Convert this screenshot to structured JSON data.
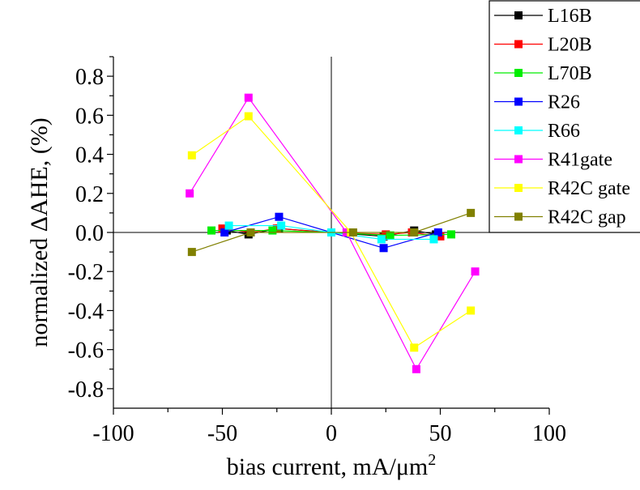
{
  "chart_data": {
    "type": "line",
    "xlabel": "bias current, mA/μm",
    "xlabel_superscript": "2",
    "ylabel": "normalized ΔAHE, (%)",
    "xlim": [
      -100,
      100
    ],
    "ylim": [
      -0.9,
      0.9
    ],
    "x_ticks": [
      -100,
      -50,
      0,
      50,
      100
    ],
    "x_tick_labels": [
      "-100",
      "-50",
      "0",
      "50",
      "100"
    ],
    "y_ticks": [
      -0.8,
      -0.6,
      -0.4,
      -0.2,
      0.0,
      0.2,
      0.4,
      0.6,
      0.8
    ],
    "y_tick_labels": [
      "-0.8",
      "-0.6",
      "-0.4",
      "-0.2",
      "0.0",
      "0.2",
      "0.4",
      "0.6",
      "0.8"
    ],
    "grid": false,
    "legend_position": "top-right",
    "marker": "square",
    "series": [
      {
        "name": "L16B",
        "color": "#000000",
        "x": [
          -48,
          -38,
          -24,
          0,
          24,
          38,
          48
        ],
        "y": [
          0.01,
          -0.01,
          0.02,
          0.0,
          -0.02,
          0.01,
          -0.01
        ]
      },
      {
        "name": "L20B",
        "color": "#ff0000",
        "x": [
          -50,
          -37,
          -25,
          0,
          25,
          37,
          50
        ],
        "y": [
          0.02,
          0.0,
          0.02,
          0.0,
          -0.01,
          0.0,
          -0.02
        ]
      },
      {
        "name": "L70B",
        "color": "#00ee00",
        "x": [
          -55,
          -27,
          0,
          27,
          55
        ],
        "y": [
          0.01,
          0.01,
          0.0,
          -0.015,
          -0.01
        ]
      },
      {
        "name": "R26",
        "color": "#0000ff",
        "x": [
          -49,
          -24,
          0,
          24,
          49
        ],
        "y": [
          0.0,
          0.08,
          0.0,
          -0.08,
          0.0
        ]
      },
      {
        "name": "R66",
        "color": "#00ffff",
        "x": [
          -47,
          -23,
          0,
          23,
          47
        ],
        "y": [
          0.035,
          0.035,
          0.0,
          -0.035,
          -0.035
        ]
      },
      {
        "name": "R41gate",
        "color": "#ff00ff",
        "x": [
          -65,
          -38,
          7,
          39,
          66
        ],
        "y": [
          0.2,
          0.69,
          0.0,
          -0.7,
          -0.2
        ]
      },
      {
        "name": "R42C gate",
        "color": "#ffff00",
        "x": [
          -64,
          -38,
          9,
          38,
          64
        ],
        "y": [
          0.395,
          0.595,
          0.0,
          -0.59,
          -0.4
        ]
      },
      {
        "name": "R42C gap",
        "color": "#808000",
        "x": [
          -64,
          -37,
          10,
          38,
          64
        ],
        "y": [
          -0.1,
          0.0,
          0.0,
          0.0,
          0.1
        ]
      }
    ]
  }
}
